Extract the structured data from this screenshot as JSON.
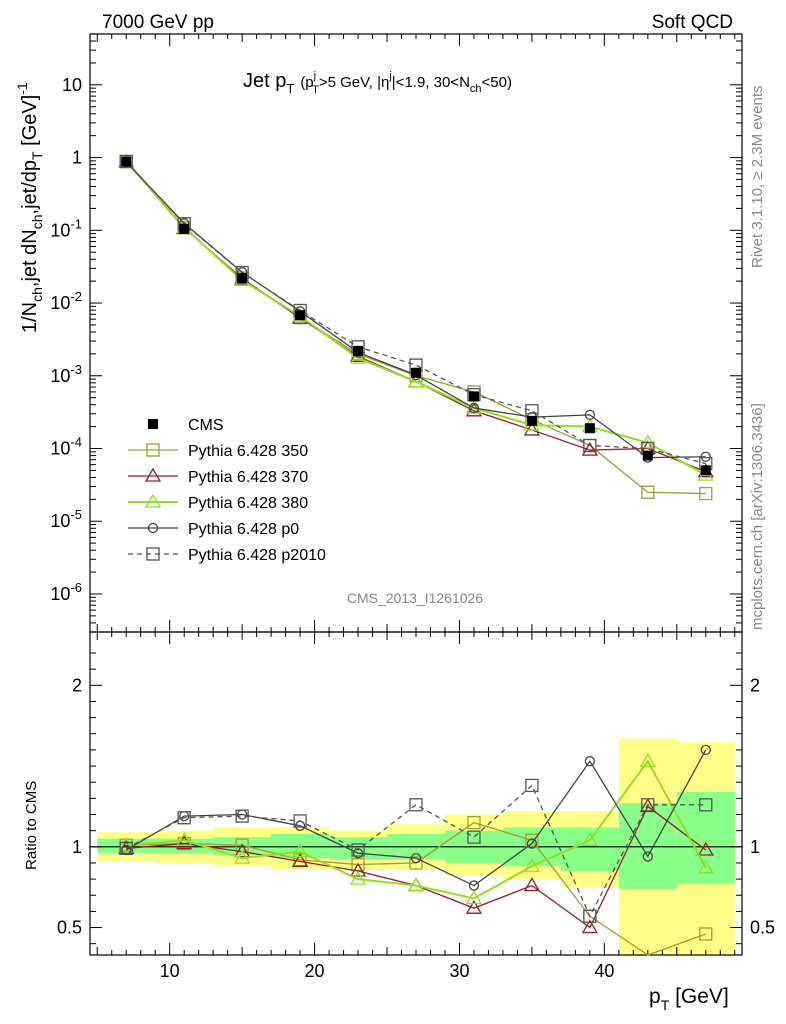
{
  "header": {
    "left": "7000 GeV pp",
    "right": "Soft QCD"
  },
  "side_text": {
    "rivet": "Rivet 3.1.10, ≥ 2.3M events",
    "source": "mcplots.cern.ch [arXiv:1306.3436]"
  },
  "analysis_tag": "CMS_2013_I1261026",
  "chart_data": [
    {
      "type": "line",
      "title": "Jet pT (pTj>5 GeV, |ηj|<1.9, 30<Nch<50)",
      "title_parts": {
        "main": "Jet p",
        "main_sub": "T",
        "cut_open": "(p",
        "cut_sub": "T",
        "cut_sup": "j",
        "cut_mid": ">5 GeV, |η",
        "eta_sup": "j",
        "cut_end": "|<1.9, 30<N",
        "nch_sub": "ch",
        "close": "<50)"
      },
      "ylabel": "1/Nch,jet dNch,jet/dpT [GeV]-1",
      "ylabel_parts": {
        "a": "1/N",
        "a_sub": "ch",
        "b": ",jet dN",
        "b_sub": "ch",
        "c": ",jet/dp",
        "c_sub": "T",
        "d": " [GeV]",
        "d_sup": "-1"
      },
      "yscale": "log",
      "ylim": [
        3e-07,
        50
      ],
      "xlim": [
        4.5,
        49.5
      ],
      "y_tick_labels": [
        "10^-6",
        "10^-5",
        "10^-4",
        "10^-3",
        "10^-2",
        "10^-1",
        "1",
        "10"
      ],
      "legend_position": "lower-left",
      "x": [
        7,
        11,
        15,
        19,
        23,
        27,
        31,
        35,
        39,
        43,
        47
      ],
      "series": [
        {
          "name": "CMS",
          "color": "#000000",
          "style": "marker",
          "values": [
            0.88,
            0.105,
            0.022,
            0.0068,
            0.0022,
            0.0011,
            0.00052,
            0.00024,
            0.00019,
            8e-05,
            5e-05
          ]
        },
        {
          "name": "Pythia 6.428 350",
          "color": "#a0a030",
          "style": "solid",
          "marker": "open-square",
          "values": [
            0.89,
            0.108,
            0.022,
            0.0063,
            0.002,
            0.001,
            0.0006,
            0.00025,
            0.00011,
            2.5e-05,
            2.4e-05
          ]
        },
        {
          "name": "Pythia 6.428 370",
          "color": "#9b1b2a",
          "style": "solid",
          "marker": "open-triangle",
          "values": [
            0.88,
            0.107,
            0.0215,
            0.0062,
            0.00185,
            0.00083,
            0.00033,
            0.00018,
            9.5e-05,
            0.0001,
            4.8e-05
          ]
        },
        {
          "name": "Pythia 6.428 380",
          "color": "#90e020",
          "style": "solid",
          "marker": "open-triangle",
          "values": [
            0.89,
            0.11,
            0.0205,
            0.0066,
            0.00175,
            0.00083,
            0.00036,
            0.00021,
            0.0002,
            0.00012,
            4.3e-05
          ]
        },
        {
          "name": "Pythia 6.428 p0",
          "color": "#444444",
          "style": "solid",
          "marker": "open-circle",
          "values": [
            0.87,
            0.125,
            0.0265,
            0.0077,
            0.0021,
            0.00102,
            0.00036,
            0.00027,
            0.00029,
            7.5e-05,
            7.7e-05
          ]
        },
        {
          "name": "Pythia 6.428 p2010",
          "color": "#555555",
          "style": "dashed",
          "marker": "open-square",
          "values": [
            0.88,
            0.123,
            0.0262,
            0.0079,
            0.0025,
            0.0014,
            0.00055,
            0.00033,
            0.00011,
            0.0001,
            6.2e-05
          ]
        }
      ]
    },
    {
      "type": "line",
      "xlabel": "pT [GeV]",
      "xlabel_parts": {
        "a": "p",
        "a_sub": "T",
        "b": " [GeV]"
      },
      "ylabel": "Ratio to CMS",
      "ylim": [
        0.33,
        2.33
      ],
      "xlim": [
        4.5,
        49.5
      ],
      "x_tick_labels": [
        "10",
        "20",
        "30",
        "40"
      ],
      "y_tick_labels": [
        "0.5",
        "1",
        "2"
      ],
      "bin_edges": [
        5,
        9,
        13,
        17,
        21,
        25,
        29,
        33,
        37,
        41,
        45,
        49
      ],
      "band_inner": [
        [
          0.96,
          1.05
        ],
        [
          0.96,
          1.05
        ],
        [
          0.95,
          1.06
        ],
        [
          0.93,
          1.08
        ],
        [
          0.92,
          1.06
        ],
        [
          0.92,
          1.08
        ],
        [
          0.9,
          1.1
        ],
        [
          0.88,
          1.12
        ],
        [
          0.85,
          1.12
        ],
        [
          0.74,
          1.27
        ],
        [
          0.77,
          1.34
        ]
      ],
      "band_outer": [
        [
          0.91,
          1.09
        ],
        [
          0.9,
          1.1
        ],
        [
          0.88,
          1.12
        ],
        [
          0.86,
          1.12
        ],
        [
          0.86,
          1.1
        ],
        [
          0.86,
          1.14
        ],
        [
          0.82,
          1.2
        ],
        [
          0.8,
          1.22
        ],
        [
          0.75,
          1.22
        ],
        [
          0.33,
          1.67
        ],
        [
          0.33,
          1.65
        ]
      ],
      "series": [
        {
          "name": "Pythia 6.428 350",
          "color": "#a0a030",
          "style": "solid",
          "marker": "open-square",
          "values": [
            1.01,
            1.02,
            1.01,
            0.92,
            0.89,
            0.9,
            1.15,
            1.04,
            0.57,
            0.32,
            0.46
          ]
        },
        {
          "name": "Pythia 6.428 370",
          "color": "#9b1b2a",
          "style": "solid",
          "marker": "open-triangle",
          "values": [
            0.99,
            1.02,
            0.97,
            0.91,
            0.85,
            0.76,
            0.62,
            0.76,
            0.5,
            1.25,
            0.98
          ]
        },
        {
          "name": "Pythia 6.428 380",
          "color": "#90e020",
          "style": "solid",
          "marker": "open-triangle",
          "values": [
            1.01,
            1.04,
            0.93,
            0.97,
            0.8,
            0.76,
            0.68,
            0.88,
            1.04,
            1.53,
            0.87
          ]
        },
        {
          "name": "Pythia 6.428 p0",
          "color": "#444444",
          "style": "solid",
          "marker": "open-circle",
          "values": [
            0.98,
            1.19,
            1.2,
            1.13,
            0.96,
            0.93,
            0.76,
            1.02,
            1.53,
            0.94,
            1.6
          ]
        },
        {
          "name": "Pythia 6.428 p2010",
          "color": "#555555",
          "style": "dashed",
          "marker": "open-square",
          "values": [
            0.99,
            1.18,
            1.19,
            1.16,
            0.98,
            1.26,
            1.06,
            1.38,
            0.57,
            1.26,
            1.26
          ]
        }
      ]
    }
  ]
}
